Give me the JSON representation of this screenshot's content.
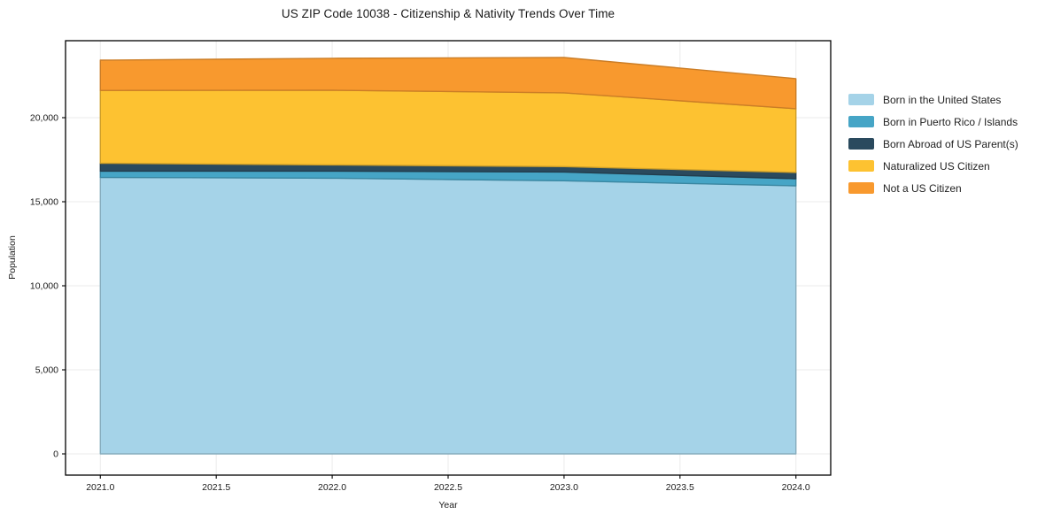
{
  "page": {
    "background": "#ffffff"
  },
  "chart_data": {
    "type": "area",
    "stacked": true,
    "title": "US ZIP Code 10038 - Citizenship & Nativity Trends Over Time",
    "xlabel": "Year",
    "ylabel": "Population",
    "x": [
      2021,
      2022,
      2023,
      2024
    ],
    "series": [
      {
        "name": "Born in the United States",
        "color": "#a5d3e8",
        "values": [
          16450,
          16400,
          16250,
          15950
        ]
      },
      {
        "name": "Born in Puerto Rico / Islands",
        "color": "#46a5c6",
        "values": [
          370,
          420,
          520,
          420
        ]
      },
      {
        "name": "Born Abroad of US Parent(s)",
        "color": "#2a4a5e",
        "values": [
          470,
          370,
          320,
          370
        ]
      },
      {
        "name": "Naturalized US Citizen",
        "color": "#fdc231",
        "values": [
          4330,
          4440,
          4390,
          3790
        ]
      },
      {
        "name": "Not a US Citizen",
        "color": "#f8992e",
        "values": [
          1800,
          1900,
          2100,
          1790
        ]
      }
    ],
    "xticks": [
      2021.0,
      2021.5,
      2022.0,
      2022.5,
      2023.0,
      2023.5,
      2024.0
    ],
    "xtick_labels": [
      "2021.0",
      "2021.5",
      "2022.0",
      "2022.5",
      "2023.0",
      "2023.5",
      "2024.0"
    ],
    "yticks": [
      0,
      5000,
      10000,
      15000,
      20000
    ],
    "ytick_labels": [
      "0",
      "5,000",
      "10,000",
      "15,000",
      "20,000"
    ],
    "xlim": [
      2020.85,
      2024.15
    ],
    "ylim": [
      -1263,
      24579
    ],
    "grid": true,
    "legend_position": "right-outside",
    "colors": {
      "grid": "#ebebeb",
      "spine": "#000000",
      "tick_text": "#1a1a1a"
    }
  }
}
